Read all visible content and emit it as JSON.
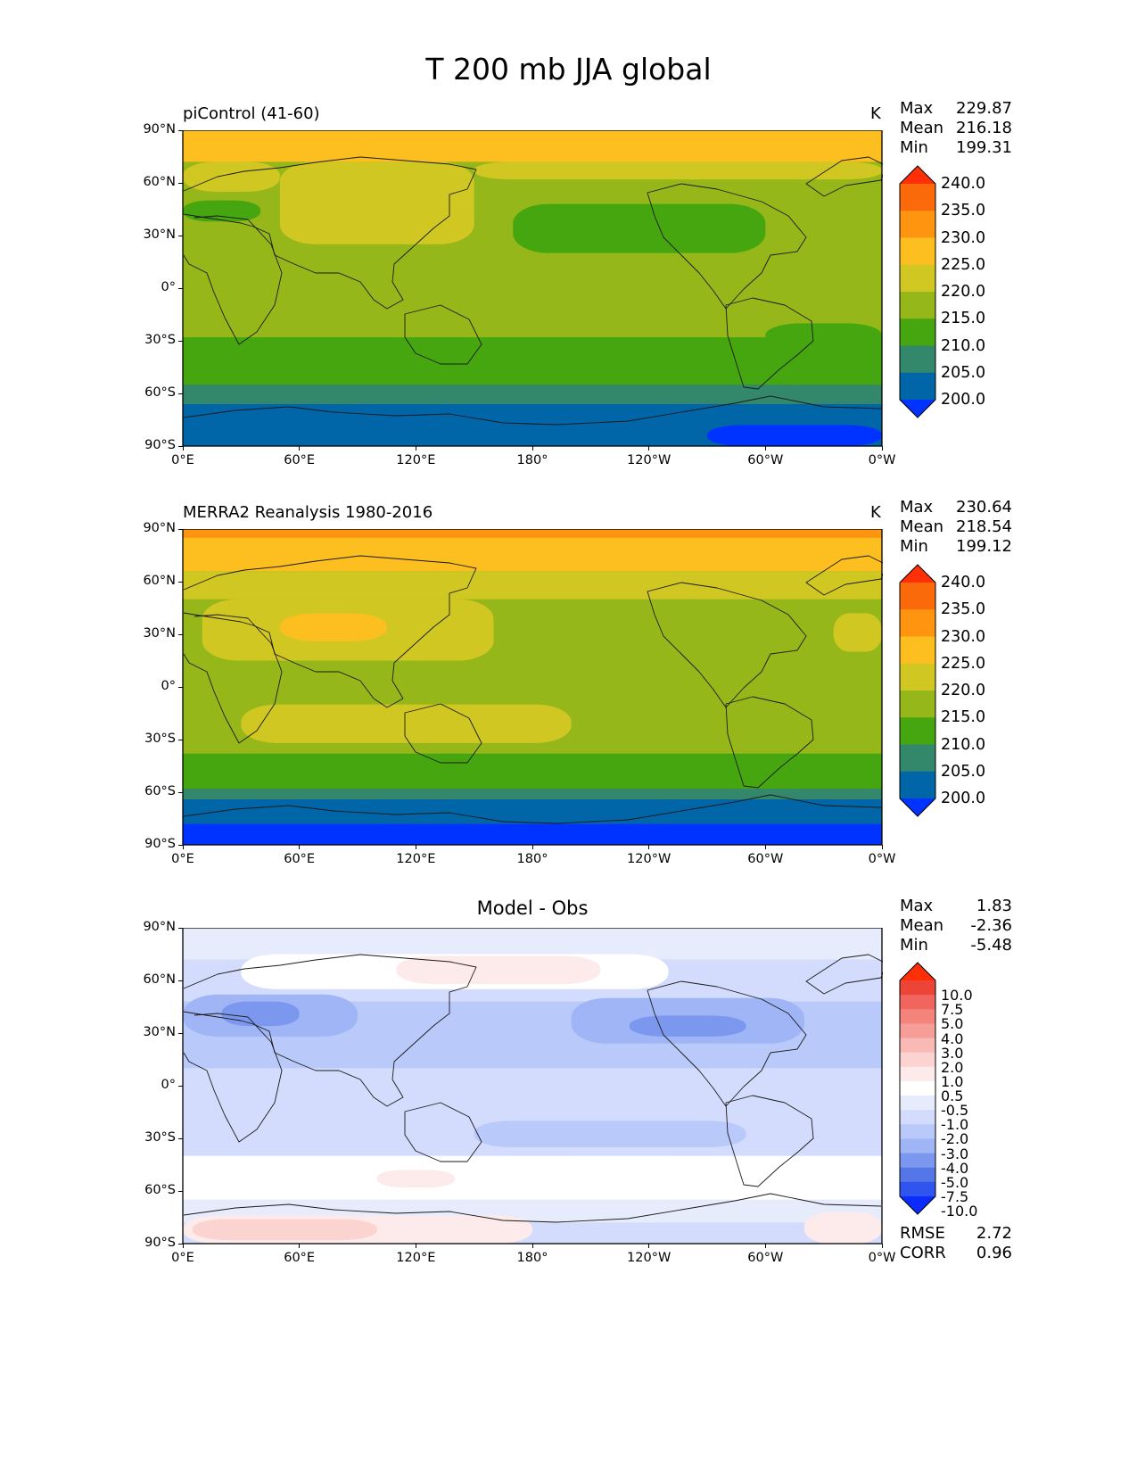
{
  "title": "T 200 mb JJA global",
  "colors": {
    "abs_levels": [
      "#0033ff",
      "#0066a8",
      "#33876a",
      "#45a60f",
      "#96b71a",
      "#d0c723",
      "#fdbf20",
      "#fe9410",
      "#fb6a0a",
      "#ff2f08"
    ],
    "diff_levels": [
      "#0a2cff",
      "#2f55ee",
      "#5476e6",
      "#7c98ee",
      "#9fb5f6",
      "#b9c9fa",
      "#d3dcfc",
      "#e7ecfd",
      "#ffffff",
      "#fdeaea",
      "#fbd3d0",
      "#f9b9b4",
      "#f69d97",
      "#f4837b",
      "#f0665f",
      "#ec4437",
      "#ff2f08"
    ]
  },
  "panels": [
    {
      "title_left": "piControl (41-60)",
      "title_center": "",
      "units": "K",
      "stats": [
        {
          "label": "Max",
          "value": "229.87"
        },
        {
          "label": "Mean",
          "value": "216.18"
        },
        {
          "label": "Min",
          "value": "199.31"
        }
      ],
      "colorbar": {
        "extend": "both",
        "ticks": [
          "240.0",
          "235.0",
          "230.0",
          "225.0",
          "220.0",
          "215.0",
          "210.0",
          "205.0",
          "200.0"
        ]
      }
    },
    {
      "title_left": "MERRA2 Reanalysis 1980-2016",
      "title_center": "",
      "units": "K",
      "stats": [
        {
          "label": "Max",
          "value": "230.64"
        },
        {
          "label": "Mean",
          "value": "218.54"
        },
        {
          "label": "Min",
          "value": "199.12"
        }
      ],
      "colorbar": {
        "extend": "both",
        "ticks": [
          "240.0",
          "235.0",
          "230.0",
          "225.0",
          "220.0",
          "215.0",
          "210.0",
          "205.0",
          "200.0"
        ]
      }
    },
    {
      "title_left": "",
      "title_center": "Model - Obs",
      "units": "",
      "stats": [
        {
          "label": "Max",
          "value": "1.83"
        },
        {
          "label": "Mean",
          "value": "-2.36"
        },
        {
          "label": "Min",
          "value": "-5.48"
        }
      ],
      "colorbar": {
        "extend": "both",
        "ticks": [
          "10.0",
          "7.5",
          "5.0",
          "4.0",
          "3.0",
          "2.0",
          "1.0",
          "0.5",
          "-0.5",
          "-1.0",
          "-2.0",
          "-3.0",
          "-4.0",
          "-5.0",
          "-7.5",
          "-10.0"
        ]
      },
      "metrics": [
        {
          "label": "RMSE",
          "value": "2.72"
        },
        {
          "label": "CORR",
          "value": "0.96"
        }
      ]
    }
  ],
  "chart_data": [
    {
      "type": "heatmap",
      "title": "piControl (41-60)",
      "units": "K",
      "x_ticks": [
        "0°E",
        "60°E",
        "120°E",
        "180°",
        "120°W",
        "60°W",
        "0°W"
      ],
      "y_ticks": [
        "90°N",
        "60°N",
        "30°N",
        "0°",
        "30°S",
        "60°S",
        "90°S"
      ],
      "xlim": [
        0,
        360
      ],
      "ylim": [
        -90,
        90
      ],
      "levels": [
        195,
        200,
        205,
        210,
        215,
        220,
        225,
        230,
        235,
        240
      ],
      "background_level": 215,
      "regions": [
        {
          "level": 225,
          "lon": [
            0,
            360
          ],
          "lat": [
            72,
            90
          ]
        },
        {
          "level": 220,
          "lon": [
            50,
            150
          ],
          "lat": [
            25,
            72
          ]
        },
        {
          "level": 220,
          "lon": [
            150,
            360
          ],
          "lat": [
            62,
            72
          ]
        },
        {
          "level": 220,
          "lon": [
            0,
            50
          ],
          "lat": [
            55,
            72
          ]
        },
        {
          "level": 210,
          "lon": [
            170,
            300
          ],
          "lat": [
            20,
            48
          ]
        },
        {
          "level": 210,
          "lon": [
            0,
            40
          ],
          "lat": [
            38,
            50
          ]
        },
        {
          "level": 210,
          "lon": [
            300,
            360
          ],
          "lat": [
            -35,
            -20
          ]
        },
        {
          "level": 210,
          "lon": [
            0,
            360
          ],
          "lat": [
            -60,
            -28
          ]
        },
        {
          "level": 205,
          "lon": [
            0,
            360
          ],
          "lat": [
            -66,
            -55
          ]
        },
        {
          "level": 200,
          "lon": [
            0,
            360
          ],
          "lat": [
            -90,
            -66
          ]
        },
        {
          "level": 195,
          "lon": [
            270,
            360
          ],
          "lat": [
            -90,
            -78
          ]
        }
      ],
      "stats": {
        "max": 229.87,
        "mean": 216.18,
        "min": 199.31
      }
    },
    {
      "type": "heatmap",
      "title": "MERRA2 Reanalysis 1980-2016",
      "units": "K",
      "x_ticks": [
        "0°E",
        "60°E",
        "120°E",
        "180°",
        "120°W",
        "60°W",
        "0°W"
      ],
      "y_ticks": [
        "90°N",
        "60°N",
        "30°N",
        "0°",
        "30°S",
        "60°S",
        "90°S"
      ],
      "xlim": [
        0,
        360
      ],
      "ylim": [
        -90,
        90
      ],
      "levels": [
        195,
        200,
        205,
        210,
        215,
        220,
        225,
        230,
        235,
        240
      ],
      "background_level": 215,
      "regions": [
        {
          "level": 230,
          "lon": [
            0,
            360
          ],
          "lat": [
            85,
            90
          ]
        },
        {
          "level": 225,
          "lon": [
            0,
            360
          ],
          "lat": [
            66,
            85
          ]
        },
        {
          "level": 220,
          "lon": [
            0,
            360
          ],
          "lat": [
            50,
            66
          ]
        },
        {
          "level": 220,
          "lon": [
            10,
            160
          ],
          "lat": [
            15,
            50
          ]
        },
        {
          "level": 225,
          "lon": [
            50,
            105
          ],
          "lat": [
            26,
            42
          ]
        },
        {
          "level": 220,
          "lon": [
            30,
            200
          ],
          "lat": [
            -32,
            -10
          ]
        },
        {
          "level": 220,
          "lon": [
            335,
            360
          ],
          "lat": [
            20,
            42
          ]
        },
        {
          "level": 210,
          "lon": [
            0,
            360
          ],
          "lat": [
            -58,
            -38
          ]
        },
        {
          "level": 205,
          "lon": [
            0,
            360
          ],
          "lat": [
            -64,
            -58
          ]
        },
        {
          "level": 200,
          "lon": [
            0,
            360
          ],
          "lat": [
            -78,
            -64
          ]
        },
        {
          "level": 195,
          "lon": [
            0,
            360
          ],
          "lat": [
            -90,
            -78
          ]
        }
      ],
      "stats": {
        "max": 230.64,
        "mean": 218.54,
        "min": 199.12
      }
    },
    {
      "type": "heatmap",
      "title": "Model - Obs",
      "x_ticks": [
        "0°E",
        "60°E",
        "120°E",
        "180°",
        "120°W",
        "60°W",
        "0°W"
      ],
      "y_ticks": [
        "90°N",
        "60°N",
        "30°N",
        "0°",
        "30°S",
        "60°S",
        "90°S"
      ],
      "xlim": [
        0,
        360
      ],
      "ylim": [
        -90,
        90
      ],
      "levels": [
        -15,
        -10,
        -7.5,
        -5,
        -4,
        -3,
        -2,
        -1,
        -0.5,
        0.5,
        1,
        2,
        3,
        4,
        5,
        7.5,
        10
      ],
      "background_level": -2,
      "regions": [
        {
          "level": -1,
          "lon": [
            0,
            360
          ],
          "lat": [
            72,
            90
          ]
        },
        {
          "level": -0.5,
          "lon": [
            30,
            250
          ],
          "lat": [
            55,
            75
          ]
        },
        {
          "level": 0.5,
          "lon": [
            110,
            215
          ],
          "lat": [
            58,
            74
          ]
        },
        {
          "level": -3,
          "lon": [
            0,
            360
          ],
          "lat": [
            10,
            48
          ]
        },
        {
          "level": -4,
          "lon": [
            0,
            90
          ],
          "lat": [
            28,
            52
          ]
        },
        {
          "level": -4,
          "lon": [
            200,
            320
          ],
          "lat": [
            24,
            50
          ]
        },
        {
          "level": -5,
          "lon": [
            20,
            60
          ],
          "lat": [
            34,
            48
          ]
        },
        {
          "level": -5,
          "lon": [
            230,
            290
          ],
          "lat": [
            28,
            40
          ]
        },
        {
          "level": -3,
          "lon": [
            150,
            290
          ],
          "lat": [
            -35,
            -20
          ]
        },
        {
          "level": -0.5,
          "lon": [
            0,
            360
          ],
          "lat": [
            -65,
            -40
          ]
        },
        {
          "level": 0.5,
          "lon": [
            100,
            140
          ],
          "lat": [
            -58,
            -48
          ]
        },
        {
          "level": -1,
          "lon": [
            0,
            360
          ],
          "lat": [
            -78,
            -65
          ]
        },
        {
          "level": 0.5,
          "lon": [
            0,
            180
          ],
          "lat": [
            -90,
            -74
          ]
        },
        {
          "level": 1,
          "lon": [
            5,
            100
          ],
          "lat": [
            -88,
            -76
          ]
        },
        {
          "level": 0.5,
          "lon": [
            320,
            360
          ],
          "lat": [
            -90,
            -72
          ]
        }
      ],
      "stats": {
        "max": 1.83,
        "mean": -2.36,
        "min": -5.48,
        "rmse": 2.72,
        "corr": 0.96
      }
    }
  ]
}
